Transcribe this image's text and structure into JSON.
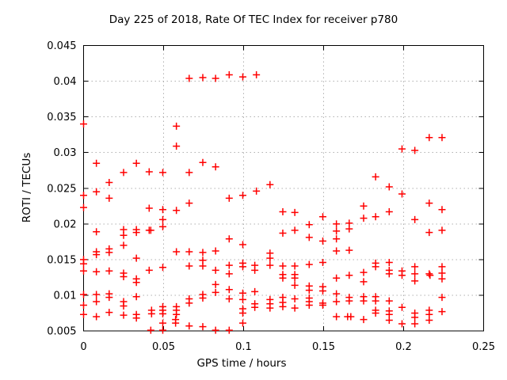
{
  "chart_data": {
    "type": "scatter",
    "title": "Day 225 of 2018, Rate Of TEC Index for receiver p780",
    "xlabel": "GPS time / hours",
    "ylabel": "ROTI / TECUs",
    "xlim": [
      0,
      0.25
    ],
    "ylim": [
      0.005,
      0.045
    ],
    "xticks": [
      0,
      0.05,
      0.1,
      0.15,
      0.2,
      0.25
    ],
    "xtick_labels": [
      "0",
      "0.05",
      "0.1",
      "0.15",
      "0.2",
      "0.25"
    ],
    "yticks": [
      0.005,
      0.01,
      0.015,
      0.02,
      0.025,
      0.03,
      0.035,
      0.04,
      0.045
    ],
    "ytick_labels": [
      "0.005",
      "0.01",
      "0.015",
      "0.02",
      "0.025",
      "0.03",
      "0.035",
      "0.04",
      "0.045"
    ],
    "grid": true,
    "legend": "none",
    "marker": "plus",
    "colors": {
      "marker": "#ff0000",
      "grid": "#b0b0b0",
      "axis": "#000000",
      "text": "#000000"
    },
    "points": [
      [
        0.0,
        0.034
      ],
      [
        0.0,
        0.024
      ],
      [
        0.0,
        0.0223
      ],
      [
        0.0,
        0.015
      ],
      [
        0.0,
        0.0144
      ],
      [
        0.0,
        0.0134
      ],
      [
        0.0,
        0.0101
      ],
      [
        0.0,
        0.0086
      ],
      [
        0.0,
        0.0073
      ],
      [
        0.008,
        0.0285
      ],
      [
        0.008,
        0.0245
      ],
      [
        0.008,
        0.0189
      ],
      [
        0.008,
        0.0161
      ],
      [
        0.008,
        0.0157
      ],
      [
        0.008,
        0.0133
      ],
      [
        0.008,
        0.0101
      ],
      [
        0.008,
        0.0091
      ],
      [
        0.008,
        0.007
      ],
      [
        0.016,
        0.0258
      ],
      [
        0.016,
        0.0236
      ],
      [
        0.016,
        0.0165
      ],
      [
        0.016,
        0.016
      ],
      [
        0.016,
        0.0134
      ],
      [
        0.016,
        0.0102
      ],
      [
        0.016,
        0.0097
      ],
      [
        0.016,
        0.0076
      ],
      [
        0.025,
        0.0272
      ],
      [
        0.025,
        0.0192
      ],
      [
        0.025,
        0.0184
      ],
      [
        0.025,
        0.017
      ],
      [
        0.025,
        0.0131
      ],
      [
        0.025,
        0.0126
      ],
      [
        0.025,
        0.0091
      ],
      [
        0.025,
        0.0085
      ],
      [
        0.025,
        0.0072
      ],
      [
        0.033,
        0.0285
      ],
      [
        0.033,
        0.0192
      ],
      [
        0.033,
        0.0188
      ],
      [
        0.033,
        0.0152
      ],
      [
        0.033,
        0.0123
      ],
      [
        0.033,
        0.0118
      ],
      [
        0.033,
        0.0098
      ],
      [
        0.033,
        0.0073
      ],
      [
        0.033,
        0.0068
      ],
      [
        0.041,
        0.0273
      ],
      [
        0.041,
        0.0222
      ],
      [
        0.041,
        0.0191
      ],
      [
        0.042,
        0.0191
      ],
      [
        0.041,
        0.0135
      ],
      [
        0.0425,
        0.0079
      ],
      [
        0.0425,
        0.0074
      ],
      [
        0.042,
        0.0051
      ],
      [
        0.0495,
        0.0272
      ],
      [
        0.0495,
        0.022
      ],
      [
        0.0495,
        0.0206
      ],
      [
        0.0495,
        0.0196
      ],
      [
        0.0495,
        0.0139
      ],
      [
        0.0495,
        0.0084
      ],
      [
        0.0495,
        0.0079
      ],
      [
        0.0495,
        0.0074
      ],
      [
        0.0495,
        0.0061
      ],
      [
        0.0495,
        0.0051
      ],
      [
        0.058,
        0.0337
      ],
      [
        0.058,
        0.0309
      ],
      [
        0.058,
        0.0219
      ],
      [
        0.058,
        0.0161
      ],
      [
        0.058,
        0.0084
      ],
      [
        0.058,
        0.0079
      ],
      [
        0.058,
        0.0073
      ],
      [
        0.0575,
        0.0066
      ],
      [
        0.0575,
        0.0061
      ],
      [
        0.066,
        0.0404
      ],
      [
        0.066,
        0.0272
      ],
      [
        0.066,
        0.0229
      ],
      [
        0.066,
        0.0161
      ],
      [
        0.066,
        0.0141
      ],
      [
        0.066,
        0.0095
      ],
      [
        0.066,
        0.0089
      ],
      [
        0.066,
        0.0057
      ],
      [
        0.0745,
        0.0405
      ],
      [
        0.0745,
        0.0286
      ],
      [
        0.0745,
        0.016
      ],
      [
        0.0745,
        0.0149
      ],
      [
        0.0745,
        0.0141
      ],
      [
        0.0745,
        0.0101
      ],
      [
        0.0745,
        0.0096
      ],
      [
        0.0745,
        0.0056
      ],
      [
        0.0825,
        0.0404
      ],
      [
        0.0825,
        0.028
      ],
      [
        0.0825,
        0.0162
      ],
      [
        0.0825,
        0.0135
      ],
      [
        0.0825,
        0.0115
      ],
      [
        0.0825,
        0.0104
      ],
      [
        0.0825,
        0.0051
      ],
      [
        0.091,
        0.0409
      ],
      [
        0.091,
        0.0236
      ],
      [
        0.091,
        0.0179
      ],
      [
        0.091,
        0.0142
      ],
      [
        0.091,
        0.013
      ],
      [
        0.091,
        0.0108
      ],
      [
        0.091,
        0.0095
      ],
      [
        0.091,
        0.0051
      ],
      [
        0.0995,
        0.0406
      ],
      [
        0.0995,
        0.024
      ],
      [
        0.0995,
        0.0171
      ],
      [
        0.0995,
        0.0145
      ],
      [
        0.0995,
        0.014
      ],
      [
        0.0995,
        0.0103
      ],
      [
        0.0995,
        0.0094
      ],
      [
        0.0995,
        0.0081
      ],
      [
        0.0995,
        0.0075
      ],
      [
        0.0995,
        0.0061
      ],
      [
        0.108,
        0.0409
      ],
      [
        0.108,
        0.0246
      ],
      [
        0.107,
        0.0142
      ],
      [
        0.107,
        0.0135
      ],
      [
        0.107,
        0.0105
      ],
      [
        0.107,
        0.0088
      ],
      [
        0.107,
        0.0083
      ],
      [
        0.1165,
        0.0255
      ],
      [
        0.1165,
        0.0159
      ],
      [
        0.1165,
        0.0152
      ],
      [
        0.1165,
        0.0142
      ],
      [
        0.1165,
        0.0094
      ],
      [
        0.1165,
        0.0088
      ],
      [
        0.1165,
        0.0082
      ],
      [
        0.1245,
        0.0217
      ],
      [
        0.1245,
        0.0187
      ],
      [
        0.1245,
        0.0141
      ],
      [
        0.1245,
        0.0129
      ],
      [
        0.1245,
        0.0124
      ],
      [
        0.1245,
        0.0097
      ],
      [
        0.1245,
        0.009
      ],
      [
        0.1245,
        0.0084
      ],
      [
        0.132,
        0.0216
      ],
      [
        0.132,
        0.0191
      ],
      [
        0.132,
        0.0141
      ],
      [
        0.132,
        0.0129
      ],
      [
        0.132,
        0.0124
      ],
      [
        0.132,
        0.0114
      ],
      [
        0.132,
        0.0095
      ],
      [
        0.132,
        0.0082
      ],
      [
        0.141,
        0.0199
      ],
      [
        0.141,
        0.0181
      ],
      [
        0.141,
        0.0143
      ],
      [
        0.141,
        0.0113
      ],
      [
        0.141,
        0.0107
      ],
      [
        0.141,
        0.0096
      ],
      [
        0.141,
        0.0091
      ],
      [
        0.141,
        0.0086
      ],
      [
        0.1495,
        0.021
      ],
      [
        0.1495,
        0.0176
      ],
      [
        0.1495,
        0.0146
      ],
      [
        0.1495,
        0.0112
      ],
      [
        0.1495,
        0.0106
      ],
      [
        0.1495,
        0.0089
      ],
      [
        0.1495,
        0.0086
      ],
      [
        0.158,
        0.02
      ],
      [
        0.158,
        0.019
      ],
      [
        0.158,
        0.0179
      ],
      [
        0.158,
        0.0162
      ],
      [
        0.158,
        0.0124
      ],
      [
        0.158,
        0.0102
      ],
      [
        0.158,
        0.0091
      ],
      [
        0.158,
        0.007
      ],
      [
        0.166,
        0.0201
      ],
      [
        0.166,
        0.0193
      ],
      [
        0.166,
        0.0163
      ],
      [
        0.166,
        0.0128
      ],
      [
        0.166,
        0.0097
      ],
      [
        0.166,
        0.0092
      ],
      [
        0.165,
        0.007
      ],
      [
        0.167,
        0.007
      ],
      [
        0.175,
        0.0225
      ],
      [
        0.175,
        0.0208
      ],
      [
        0.175,
        0.0132
      ],
      [
        0.175,
        0.0119
      ],
      [
        0.175,
        0.0098
      ],
      [
        0.175,
        0.0092
      ],
      [
        0.175,
        0.0066
      ],
      [
        0.1825,
        0.0266
      ],
      [
        0.1825,
        0.021
      ],
      [
        0.1825,
        0.0145
      ],
      [
        0.1825,
        0.014
      ],
      [
        0.1825,
        0.0098
      ],
      [
        0.1825,
        0.0092
      ],
      [
        0.1825,
        0.0079
      ],
      [
        0.1825,
        0.0075
      ],
      [
        0.191,
        0.0252
      ],
      [
        0.191,
        0.0217
      ],
      [
        0.191,
        0.0146
      ],
      [
        0.191,
        0.0135
      ],
      [
        0.191,
        0.013
      ],
      [
        0.191,
        0.0092
      ],
      [
        0.191,
        0.0078
      ],
      [
        0.191,
        0.0073
      ],
      [
        0.191,
        0.0065
      ],
      [
        0.199,
        0.0305
      ],
      [
        0.199,
        0.0242
      ],
      [
        0.199,
        0.0134
      ],
      [
        0.199,
        0.0128
      ],
      [
        0.199,
        0.0083
      ],
      [
        0.199,
        0.006
      ],
      [
        0.207,
        0.0303
      ],
      [
        0.207,
        0.0206
      ],
      [
        0.207,
        0.014
      ],
      [
        0.207,
        0.013
      ],
      [
        0.207,
        0.012
      ],
      [
        0.207,
        0.0075
      ],
      [
        0.207,
        0.0069
      ],
      [
        0.207,
        0.006
      ],
      [
        0.216,
        0.0321
      ],
      [
        0.216,
        0.0229
      ],
      [
        0.216,
        0.0188
      ],
      [
        0.216,
        0.013
      ],
      [
        0.2165,
        0.0128
      ],
      [
        0.216,
        0.0079
      ],
      [
        0.216,
        0.0073
      ],
      [
        0.216,
        0.0065
      ],
      [
        0.224,
        0.0321
      ],
      [
        0.224,
        0.022
      ],
      [
        0.224,
        0.0191
      ],
      [
        0.224,
        0.014
      ],
      [
        0.224,
        0.0131
      ],
      [
        0.224,
        0.0123
      ],
      [
        0.224,
        0.0097
      ],
      [
        0.224,
        0.0077
      ]
    ]
  }
}
